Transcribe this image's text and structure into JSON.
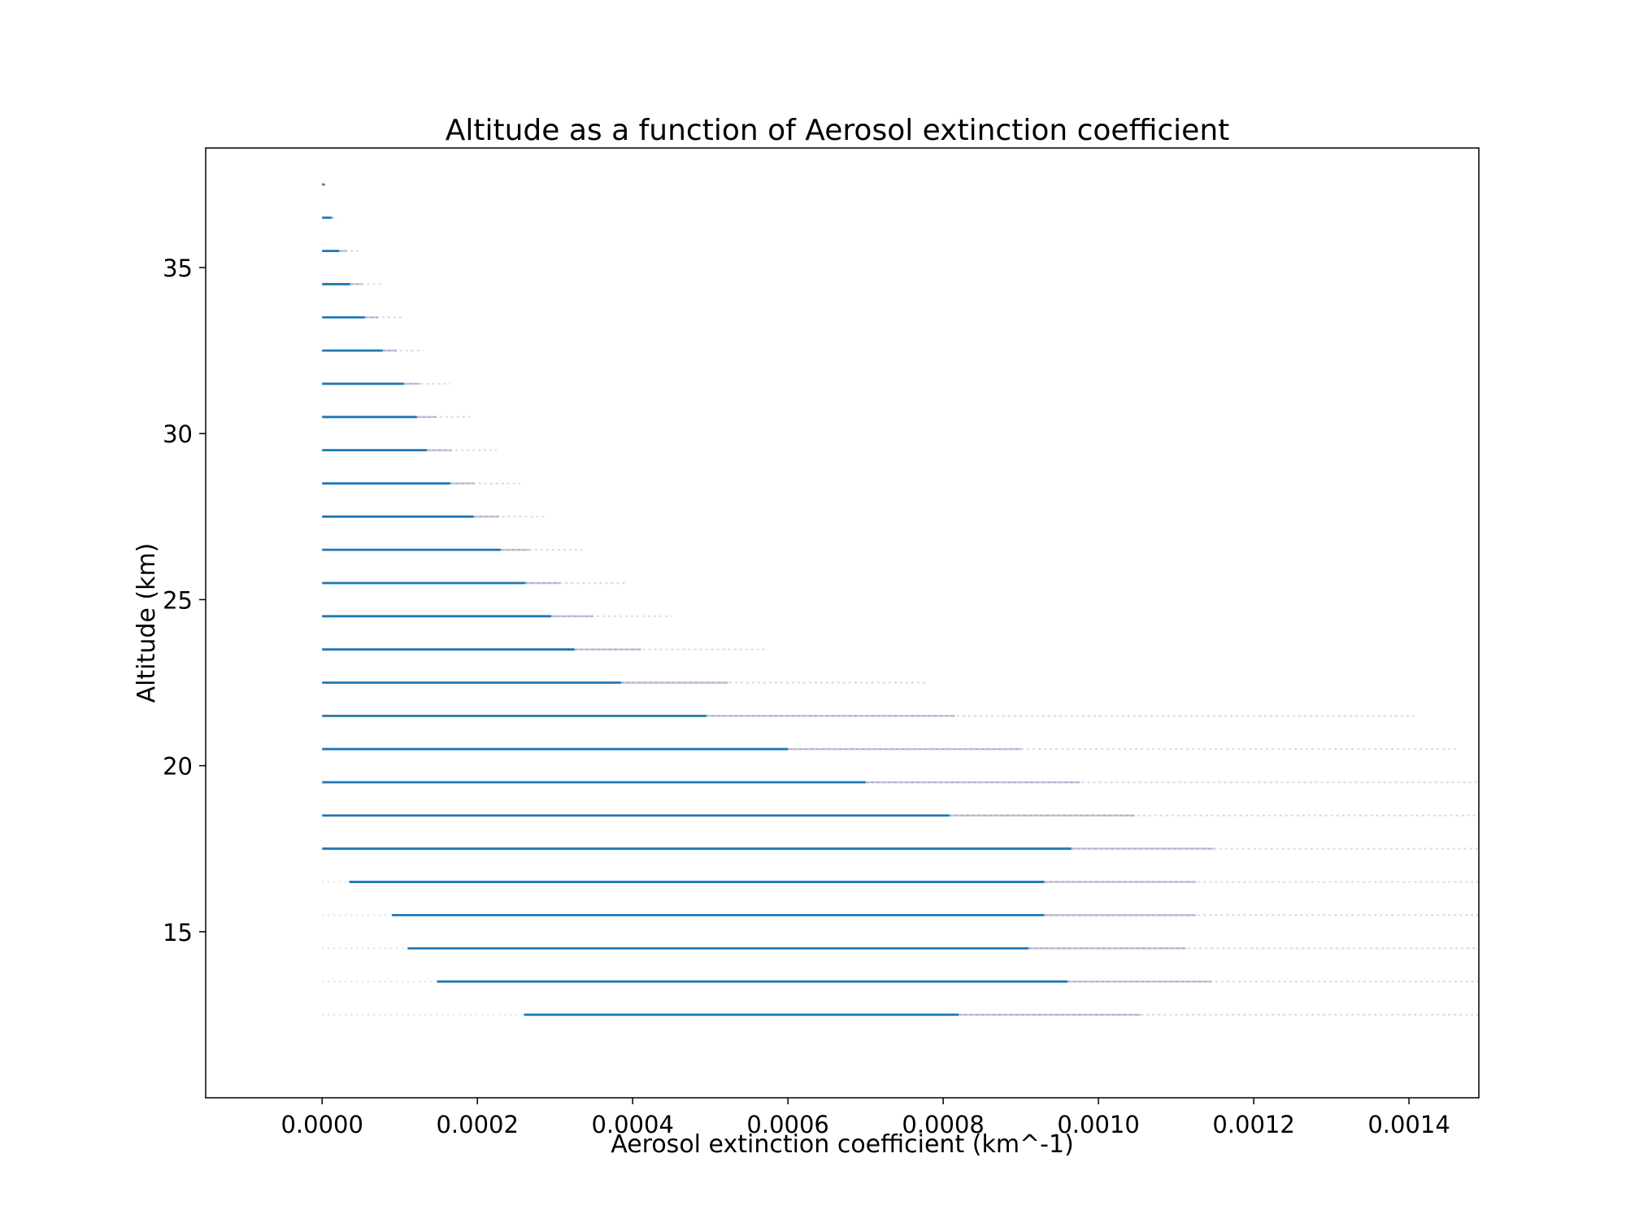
{
  "chart_data": {
    "type": "scatter",
    "title": "Altitude as a function of Aerosol extinction coefficient",
    "xlabel": "Aerosol extinction coefficient (km^-1)",
    "ylabel": "Altitude (km)",
    "xlim": [
      -0.00015,
      0.00149
    ],
    "ylim": [
      10.0,
      38.6
    ],
    "xticks": [
      0.0,
      0.0002,
      0.0004,
      0.0006,
      0.0008,
      0.001,
      0.0012,
      0.0014
    ],
    "xtick_labels": [
      "0.0000",
      "0.0002",
      "0.0004",
      "0.0006",
      "0.0008",
      "0.0010",
      "0.0012",
      "0.0014"
    ],
    "yticks": [
      15,
      20,
      25,
      30,
      35
    ],
    "ytick_labels": [
      "15",
      "20",
      "25",
      "30",
      "35"
    ],
    "grid": false,
    "legend": false,
    "colors": {
      "series": "#1f77b4",
      "sparse": "#7f7fae"
    },
    "series": [
      {
        "marker": "dense horizontal bands of points at each altitude level",
        "levels": [
          {
            "altitude": 37.5,
            "x_min": 0.0,
            "x_dense_max": 3e-06,
            "x_max": 5e-06
          },
          {
            "altitude": 36.5,
            "x_min": 0.0,
            "x_dense_max": 1.2e-05,
            "x_max": 2e-05
          },
          {
            "altitude": 35.5,
            "x_min": 0.0,
            "x_dense_max": 2.2e-05,
            "x_max": 5e-05
          },
          {
            "altitude": 34.5,
            "x_min": 0.0,
            "x_dense_max": 3.6e-05,
            "x_max": 8e-05
          },
          {
            "altitude": 33.5,
            "x_min": 0.0,
            "x_dense_max": 5.5e-05,
            "x_max": 0.000105
          },
          {
            "altitude": 32.5,
            "x_min": 0.0,
            "x_dense_max": 7.8e-05,
            "x_max": 0.00013
          },
          {
            "altitude": 31.5,
            "x_min": 0.0,
            "x_dense_max": 0.000105,
            "x_max": 0.000165
          },
          {
            "altitude": 30.5,
            "x_min": 0.0,
            "x_dense_max": 0.000122,
            "x_max": 0.000195
          },
          {
            "altitude": 29.5,
            "x_min": 0.0,
            "x_dense_max": 0.000135,
            "x_max": 0.000225
          },
          {
            "altitude": 28.5,
            "x_min": 0.0,
            "x_dense_max": 0.000165,
            "x_max": 0.000255
          },
          {
            "altitude": 27.5,
            "x_min": 0.0,
            "x_dense_max": 0.000195,
            "x_max": 0.00029
          },
          {
            "altitude": 26.5,
            "x_min": 0.0,
            "x_dense_max": 0.00023,
            "x_max": 0.000335
          },
          {
            "altitude": 25.5,
            "x_min": 0.0,
            "x_dense_max": 0.000262,
            "x_max": 0.00039
          },
          {
            "altitude": 24.5,
            "x_min": 0.0,
            "x_dense_max": 0.000295,
            "x_max": 0.00045
          },
          {
            "altitude": 23.5,
            "x_min": 0.0,
            "x_dense_max": 0.000325,
            "x_max": 0.00057
          },
          {
            "altitude": 22.5,
            "x_min": 0.0,
            "x_dense_max": 0.000385,
            "x_max": 0.00078
          },
          {
            "altitude": 21.5,
            "x_min": 0.0,
            "x_dense_max": 0.000495,
            "x_max": 0.00141
          },
          {
            "altitude": 20.5,
            "x_min": 0.0,
            "x_dense_max": 0.0006,
            "x_max": 0.00146
          },
          {
            "altitude": 19.5,
            "x_min": 0.0,
            "x_dense_max": 0.0007,
            "x_max": 0.00149
          },
          {
            "altitude": 18.5,
            "x_min": 0.0,
            "x_dense_max": 0.000808,
            "x_max": 0.00149
          },
          {
            "altitude": 17.5,
            "x_min": 0.0,
            "x_dense_max": 0.000965,
            "x_max": 0.00149
          },
          {
            "altitude": 16.5,
            "x_min": 3.5e-05,
            "x_dense_max": 0.00093,
            "x_max": 0.00149
          },
          {
            "altitude": 15.5,
            "x_min": 9e-05,
            "x_dense_max": 0.00093,
            "x_max": 0.00149
          },
          {
            "altitude": 14.5,
            "x_min": 0.00011,
            "x_dense_max": 0.00091,
            "x_max": 0.00149
          },
          {
            "altitude": 13.5,
            "x_min": 0.000148,
            "x_dense_max": 0.00096,
            "x_max": 0.00149
          },
          {
            "altitude": 12.5,
            "x_min": 0.00026,
            "x_dense_max": 0.00082,
            "x_max": 0.00149
          }
        ]
      }
    ]
  }
}
